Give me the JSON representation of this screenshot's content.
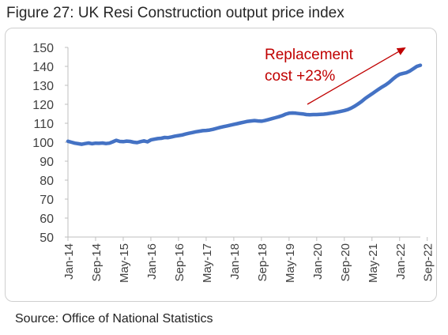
{
  "figure_title": "Figure 27: UK Resi Construction output price index",
  "source_note": "Source: Office of National Statistics",
  "colors": {
    "series": "#4472c4",
    "annotation": "#c00000",
    "axis": "#bfbfbf",
    "text": "#404040"
  },
  "chart_data": {
    "type": "line",
    "title": "",
    "xlabel": "",
    "ylabel": "",
    "ylim": [
      50,
      150
    ],
    "yticks": [
      50,
      60,
      70,
      80,
      90,
      100,
      110,
      120,
      130,
      140,
      150
    ],
    "xticks": [
      "Jan-14",
      "Sep-14",
      "May-15",
      "Jan-16",
      "Sep-16",
      "May-17",
      "Jan-18",
      "Sep-18",
      "May-19",
      "Jan-20",
      "Sep-20",
      "May-21",
      "Jan-22",
      "Sep-22"
    ],
    "x_start": "Jan-14",
    "grid": false,
    "legend": "none",
    "series": [
      {
        "values": [
          100.5,
          100,
          99.5,
          99.2,
          98.9,
          99.3,
          99.6,
          99.2,
          99.5,
          99.4,
          99.6,
          99.3,
          99.5,
          100.2,
          101,
          100.4,
          100.3,
          100.6,
          100.4,
          100,
          99.8,
          100.3,
          100.7,
          100.2,
          101.2,
          101.6,
          101.9,
          102.1,
          102.5,
          102.4,
          102.8,
          103.2,
          103.5,
          103.8,
          104.3,
          104.7,
          105.1,
          105.5,
          105.8,
          106.1,
          106.2,
          106.4,
          106.8,
          107.3,
          107.8,
          108.2,
          108.6,
          109,
          109.4,
          109.8,
          110.2,
          110.6,
          111,
          111.2,
          111.4,
          111.2,
          111.1,
          111.4,
          111.9,
          112.4,
          112.9,
          113.4,
          114,
          114.8,
          115.3,
          115.4,
          115.3,
          115.1,
          114.9,
          114.6,
          114.5,
          114.6,
          114.6,
          114.7,
          114.8,
          115,
          115.3,
          115.6,
          115.9,
          116.3,
          116.7,
          117.2,
          118,
          119,
          120.2,
          121.5,
          123,
          124.3,
          125.5,
          126.8,
          128,
          129.2,
          130.3,
          131.6,
          133.2,
          134.7,
          135.8,
          136.3,
          136.7,
          137.6,
          138.8,
          140,
          140.6
        ]
      }
    ],
    "annotations": [
      {
        "text_lines": [
          "Replacement",
          "cost +23%"
        ]
      }
    ]
  }
}
